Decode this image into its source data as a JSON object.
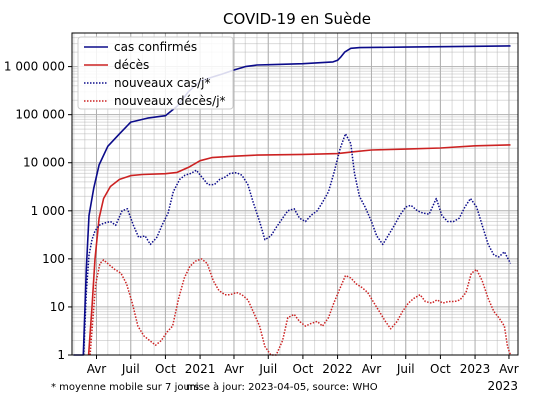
{
  "chart_data": {
    "type": "line",
    "title": "COVID-19 en Suède",
    "y_scale": "log",
    "ylim": [
      1,
      5000000
    ],
    "y_ticks": [
      {
        "value": 1,
        "label": "1"
      },
      {
        "value": 10,
        "label": "10"
      },
      {
        "value": 100,
        "label": "100"
      },
      {
        "value": 1000,
        "label": "1 000"
      },
      {
        "value": 10000,
        "label": "10 000"
      },
      {
        "value": 100000,
        "label": "100 000"
      },
      {
        "value": 1000000,
        "label": "1 000 000"
      }
    ],
    "xlim": [
      "2020-01-27",
      "2023-04-25"
    ],
    "x_ticks": [
      {
        "date": "2020-04-01",
        "label": "Avr"
      },
      {
        "date": "2020-07-01",
        "label": "Juil"
      },
      {
        "date": "2020-10-01",
        "label": "Oct"
      },
      {
        "date": "2021-01-01",
        "label": "2021"
      },
      {
        "date": "2021-04-01",
        "label": "Avr"
      },
      {
        "date": "2021-07-01",
        "label": "Juil"
      },
      {
        "date": "2021-10-01",
        "label": "Oct"
      },
      {
        "date": "2022-01-01",
        "label": "2022"
      },
      {
        "date": "2022-04-01",
        "label": "Avr"
      },
      {
        "date": "2022-07-01",
        "label": "Juil"
      },
      {
        "date": "2022-10-01",
        "label": "Oct"
      },
      {
        "date": "2023-01-01",
        "label": "2023"
      },
      {
        "date": "2023-04-01",
        "label": "Avr"
      }
    ],
    "x_offset_label": "2023",
    "grid": true,
    "legend_position": "top-left",
    "series": [
      {
        "name": "cas confirmés",
        "color": "#0b0b8a",
        "style": "solid",
        "points": [
          [
            "2020-01-31",
            1
          ],
          [
            "2020-02-26",
            1
          ],
          [
            "2020-03-05",
            60
          ],
          [
            "2020-03-12",
            800
          ],
          [
            "2020-03-25",
            3000
          ],
          [
            "2020-04-08",
            9000
          ],
          [
            "2020-05-01",
            22000
          ],
          [
            "2020-06-01",
            40000
          ],
          [
            "2020-07-01",
            70000
          ],
          [
            "2020-08-15",
            85000
          ],
          [
            "2020-10-01",
            95000
          ],
          [
            "2020-11-01",
            150000
          ],
          [
            "2020-12-01",
            300000
          ],
          [
            "2021-01-01",
            500000
          ],
          [
            "2021-02-01",
            600000
          ],
          [
            "2021-03-01",
            700000
          ],
          [
            "2021-04-01",
            850000
          ],
          [
            "2021-05-01",
            1000000
          ],
          [
            "2021-06-01",
            1080000
          ],
          [
            "2021-07-15",
            1100000
          ],
          [
            "2021-10-01",
            1150000
          ],
          [
            "2021-12-20",
            1250000
          ],
          [
            "2022-01-01",
            1350000
          ],
          [
            "2022-01-10",
            1600000
          ],
          [
            "2022-01-20",
            2000000
          ],
          [
            "2022-02-05",
            2400000
          ],
          [
            "2022-03-01",
            2480000
          ],
          [
            "2022-07-01",
            2550000
          ],
          [
            "2022-10-01",
            2600000
          ],
          [
            "2023-01-01",
            2650000
          ],
          [
            "2023-04-05",
            2700000
          ]
        ]
      },
      {
        "name": "décès",
        "color": "#cc2222",
        "style": "solid",
        "points": [
          [
            "2020-03-11",
            1
          ],
          [
            "2020-03-20",
            10
          ],
          [
            "2020-03-28",
            100
          ],
          [
            "2020-04-08",
            700
          ],
          [
            "2020-04-20",
            1800
          ],
          [
            "2020-05-08",
            3200
          ],
          [
            "2020-06-01",
            4500
          ],
          [
            "2020-07-01",
            5400
          ],
          [
            "2020-08-01",
            5700
          ],
          [
            "2020-10-01",
            5900
          ],
          [
            "2020-11-01",
            6300
          ],
          [
            "2020-12-01",
            8000
          ],
          [
            "2021-01-01",
            11000
          ],
          [
            "2021-02-01",
            12800
          ],
          [
            "2021-04-01",
            13700
          ],
          [
            "2021-06-01",
            14400
          ],
          [
            "2021-10-01",
            14900
          ],
          [
            "2022-01-01",
            15500
          ],
          [
            "2022-02-15",
            17000
          ],
          [
            "2022-04-01",
            18400
          ],
          [
            "2022-07-01",
            19200
          ],
          [
            "2022-10-01",
            20300
          ],
          [
            "2023-01-01",
            22500
          ],
          [
            "2023-04-05",
            23500
          ]
        ]
      },
      {
        "name": "nouveaux cas/j*",
        "color": "#0b0b8a",
        "style": "dotted",
        "points": [
          [
            "2020-02-27",
            1
          ],
          [
            "2020-03-05",
            20
          ],
          [
            "2020-03-12",
            120
          ],
          [
            "2020-03-20",
            250
          ],
          [
            "2020-03-28",
            380
          ],
          [
            "2020-04-08",
            500
          ],
          [
            "2020-04-20",
            550
          ],
          [
            "2020-05-08",
            600
          ],
          [
            "2020-05-22",
            500
          ],
          [
            "2020-06-08",
            1000
          ],
          [
            "2020-06-22",
            1100
          ],
          [
            "2020-07-08",
            500
          ],
          [
            "2020-07-22",
            280
          ],
          [
            "2020-08-08",
            300
          ],
          [
            "2020-08-22",
            200
          ],
          [
            "2020-09-08",
            280
          ],
          [
            "2020-09-22",
            500
          ],
          [
            "2020-10-08",
            900
          ],
          [
            "2020-10-22",
            2500
          ],
          [
            "2020-11-08",
            4500
          ],
          [
            "2020-11-22",
            5500
          ],
          [
            "2020-12-08",
            6000
          ],
          [
            "2020-12-22",
            7000
          ],
          [
            "2021-01-08",
            4800
          ],
          [
            "2021-01-22",
            3500
          ],
          [
            "2021-02-08",
            3500
          ],
          [
            "2021-02-22",
            4500
          ],
          [
            "2021-03-08",
            5000
          ],
          [
            "2021-03-22",
            6000
          ],
          [
            "2021-04-08",
            6200
          ],
          [
            "2021-04-22",
            5500
          ],
          [
            "2021-05-08",
            3500
          ],
          [
            "2021-05-22",
            1500
          ],
          [
            "2021-06-08",
            600
          ],
          [
            "2021-06-22",
            250
          ],
          [
            "2021-07-08",
            300
          ],
          [
            "2021-07-22",
            450
          ],
          [
            "2021-08-08",
            700
          ],
          [
            "2021-08-22",
            1000
          ],
          [
            "2021-09-08",
            1100
          ],
          [
            "2021-09-22",
            700
          ],
          [
            "2021-10-08",
            600
          ],
          [
            "2021-10-22",
            800
          ],
          [
            "2021-11-08",
            1000
          ],
          [
            "2021-11-22",
            1500
          ],
          [
            "2021-12-08",
            2500
          ],
          [
            "2021-12-22",
            6000
          ],
          [
            "2022-01-08",
            20000
          ],
          [
            "2022-01-22",
            40000
          ],
          [
            "2022-02-05",
            25000
          ],
          [
            "2022-02-15",
            6000
          ],
          [
            "2022-02-28",
            2000
          ],
          [
            "2022-03-15",
            1200
          ],
          [
            "2022-04-01",
            600
          ],
          [
            "2022-04-15",
            300
          ],
          [
            "2022-05-01",
            200
          ],
          [
            "2022-05-15",
            300
          ],
          [
            "2022-06-01",
            500
          ],
          [
            "2022-06-15",
            800
          ],
          [
            "2022-07-01",
            1200
          ],
          [
            "2022-07-15",
            1300
          ],
          [
            "2022-08-01",
            1000
          ],
          [
            "2022-08-15",
            900
          ],
          [
            "2022-09-01",
            850
          ],
          [
            "2022-09-20",
            1800
          ],
          [
            "2022-10-05",
            800
          ],
          [
            "2022-10-20",
            600
          ],
          [
            "2022-11-05",
            600
          ],
          [
            "2022-11-20",
            700
          ],
          [
            "2022-12-05",
            1200
          ],
          [
            "2022-12-20",
            1800
          ],
          [
            "2023-01-05",
            1200
          ],
          [
            "2023-01-20",
            500
          ],
          [
            "2023-02-05",
            200
          ],
          [
            "2023-02-20",
            120
          ],
          [
            "2023-03-05",
            110
          ],
          [
            "2023-03-20",
            140
          ],
          [
            "2023-04-05",
            80
          ]
        ]
      },
      {
        "name": "nouveaux décès/j*",
        "color": "#cc2222",
        "style": "dotted",
        "points": [
          [
            "2020-03-15",
            1
          ],
          [
            "2020-03-22",
            5
          ],
          [
            "2020-03-30",
            30
          ],
          [
            "2020-04-10",
            80
          ],
          [
            "2020-04-20",
            95
          ],
          [
            "2020-05-05",
            75
          ],
          [
            "2020-05-20",
            60
          ],
          [
            "2020-06-05",
            50
          ],
          [
            "2020-06-20",
            30
          ],
          [
            "2020-07-05",
            12
          ],
          [
            "2020-07-20",
            4
          ],
          [
            "2020-08-05",
            2.5
          ],
          [
            "2020-08-20",
            2
          ],
          [
            "2020-09-05",
            1.6
          ],
          [
            "2020-09-20",
            2
          ],
          [
            "2020-10-05",
            3
          ],
          [
            "2020-10-20",
            4
          ],
          [
            "2020-11-05",
            15
          ],
          [
            "2020-11-20",
            40
          ],
          [
            "2020-12-05",
            70
          ],
          [
            "2020-12-20",
            90
          ],
          [
            "2021-01-05",
            100
          ],
          [
            "2021-01-20",
            80
          ],
          [
            "2021-02-05",
            35
          ],
          [
            "2021-02-20",
            22
          ],
          [
            "2021-03-08",
            18
          ],
          [
            "2021-03-22",
            18
          ],
          [
            "2021-04-08",
            20
          ],
          [
            "2021-04-22",
            18
          ],
          [
            "2021-05-08",
            14
          ],
          [
            "2021-05-22",
            8
          ],
          [
            "2021-06-08",
            4
          ],
          [
            "2021-06-22",
            1.5
          ],
          [
            "2021-07-08",
            1
          ],
          [
            "2021-07-22",
            1
          ],
          [
            "2021-08-08",
            2
          ],
          [
            "2021-08-22",
            6
          ],
          [
            "2021-09-08",
            7
          ],
          [
            "2021-09-22",
            5
          ],
          [
            "2021-10-08",
            4
          ],
          [
            "2021-10-22",
            4.5
          ],
          [
            "2021-11-08",
            5
          ],
          [
            "2021-11-22",
            4
          ],
          [
            "2021-12-08",
            6
          ],
          [
            "2021-12-22",
            12
          ],
          [
            "2022-01-08",
            25
          ],
          [
            "2022-01-22",
            45
          ],
          [
            "2022-02-05",
            40
          ],
          [
            "2022-02-20",
            30
          ],
          [
            "2022-03-08",
            25
          ],
          [
            "2022-03-22",
            20
          ],
          [
            "2022-04-08",
            12
          ],
          [
            "2022-04-22",
            8
          ],
          [
            "2022-05-08",
            5
          ],
          [
            "2022-05-22",
            3.5
          ],
          [
            "2022-06-08",
            5
          ],
          [
            "2022-06-22",
            8
          ],
          [
            "2022-07-08",
            12
          ],
          [
            "2022-07-22",
            15
          ],
          [
            "2022-08-08",
            18
          ],
          [
            "2022-08-22",
            13
          ],
          [
            "2022-09-08",
            12
          ],
          [
            "2022-09-22",
            14
          ],
          [
            "2022-10-08",
            12
          ],
          [
            "2022-10-22",
            13
          ],
          [
            "2022-11-08",
            13
          ],
          [
            "2022-11-22",
            14
          ],
          [
            "2022-12-08",
            20
          ],
          [
            "2022-12-22",
            50
          ],
          [
            "2023-01-05",
            60
          ],
          [
            "2023-01-20",
            35
          ],
          [
            "2023-02-05",
            15
          ],
          [
            "2023-02-20",
            8
          ],
          [
            "2023-03-05",
            6
          ],
          [
            "2023-03-20",
            4
          ],
          [
            "2023-03-28",
            1.5
          ],
          [
            "2023-04-05",
            1
          ]
        ]
      }
    ],
    "footnote": "* moyenne mobile sur 7 jours",
    "source_note": "mise à jour: 2023-04-05, source: WHO"
  }
}
